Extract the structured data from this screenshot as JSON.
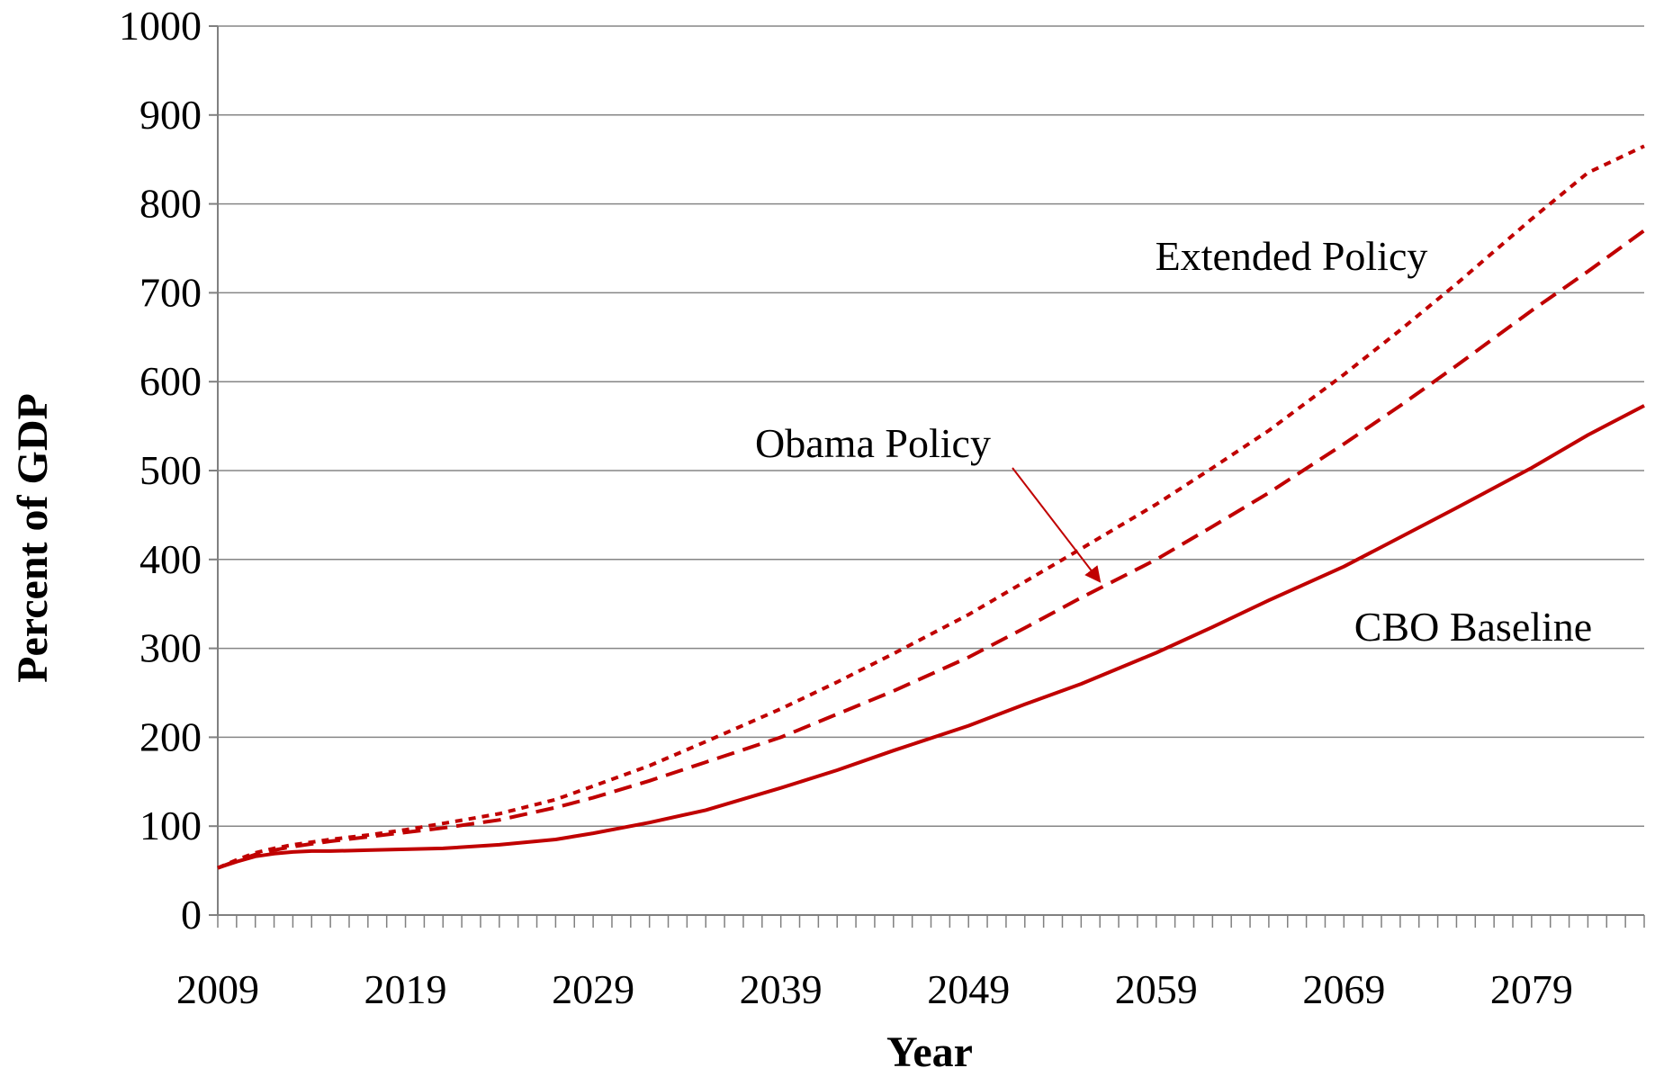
{
  "chart_data": {
    "type": "line",
    "title": "",
    "xlabel": "Year",
    "ylabel": "Percent of GDP",
    "xlim": [
      2009,
      2085
    ],
    "ylim": [
      0,
      1000
    ],
    "x_ticks": [
      2009,
      2019,
      2029,
      2039,
      2049,
      2059,
      2069,
      2079
    ],
    "y_ticks": [
      0,
      100,
      200,
      300,
      400,
      500,
      600,
      700,
      800,
      900,
      1000
    ],
    "grid": "horizontal",
    "legend": "none",
    "color": "#c00000",
    "series": [
      {
        "name": "CBO Baseline",
        "style": "solid",
        "x": [
          2009,
          2010,
          2011,
          2012,
          2013,
          2014,
          2015,
          2017,
          2019,
          2021,
          2024,
          2027,
          2029,
          2032,
          2035,
          2039,
          2042,
          2045,
          2049,
          2052,
          2055,
          2059,
          2062,
          2065,
          2069,
          2072,
          2075,
          2079,
          2082,
          2085
        ],
        "values": [
          53,
          60,
          66,
          69,
          71,
          72,
          72,
          73,
          74,
          75,
          79,
          85,
          92,
          104,
          118,
          143,
          163,
          185,
          213,
          237,
          260,
          295,
          324,
          354,
          392,
          425,
          458,
          503,
          540,
          573
        ]
      },
      {
        "name": "Obama Policy",
        "style": "dashed",
        "x": [
          2009,
          2010,
          2011,
          2012,
          2013,
          2015,
          2017,
          2019,
          2021,
          2024,
          2027,
          2029,
          2032,
          2035,
          2039,
          2042,
          2045,
          2049,
          2052,
          2055,
          2059,
          2062,
          2065,
          2069,
          2072,
          2075,
          2079,
          2082,
          2085
        ],
        "values": [
          53,
          61,
          68,
          73,
          77,
          83,
          88,
          93,
          98,
          107,
          121,
          132,
          151,
          172,
          200,
          226,
          252,
          290,
          323,
          357,
          400,
          437,
          475,
          530,
          573,
          618,
          680,
          724,
          770
        ]
      },
      {
        "name": "Extended Policy",
        "style": "dotted",
        "x": [
          2009,
          2010,
          2011,
          2012,
          2013,
          2015,
          2017,
          2019,
          2021,
          2024,
          2027,
          2029,
          2032,
          2035,
          2039,
          2042,
          2045,
          2049,
          2052,
          2055,
          2059,
          2062,
          2065,
          2069,
          2072,
          2075,
          2079,
          2082,
          2085
        ],
        "values": [
          53,
          62,
          70,
          75,
          79,
          85,
          90,
          96,
          103,
          114,
          130,
          145,
          168,
          195,
          232,
          262,
          294,
          338,
          375,
          412,
          462,
          503,
          545,
          608,
          658,
          710,
          783,
          835,
          865
        ]
      }
    ],
    "annotations": [
      {
        "text": "Extended Policy",
        "series": "Extended Policy"
      },
      {
        "text": "Obama Policy",
        "series": "Obama Policy",
        "arrow_to": {
          "x": 2056,
          "y": 375
        }
      },
      {
        "text": "CBO Baseline",
        "series": "CBO Baseline"
      }
    ]
  }
}
